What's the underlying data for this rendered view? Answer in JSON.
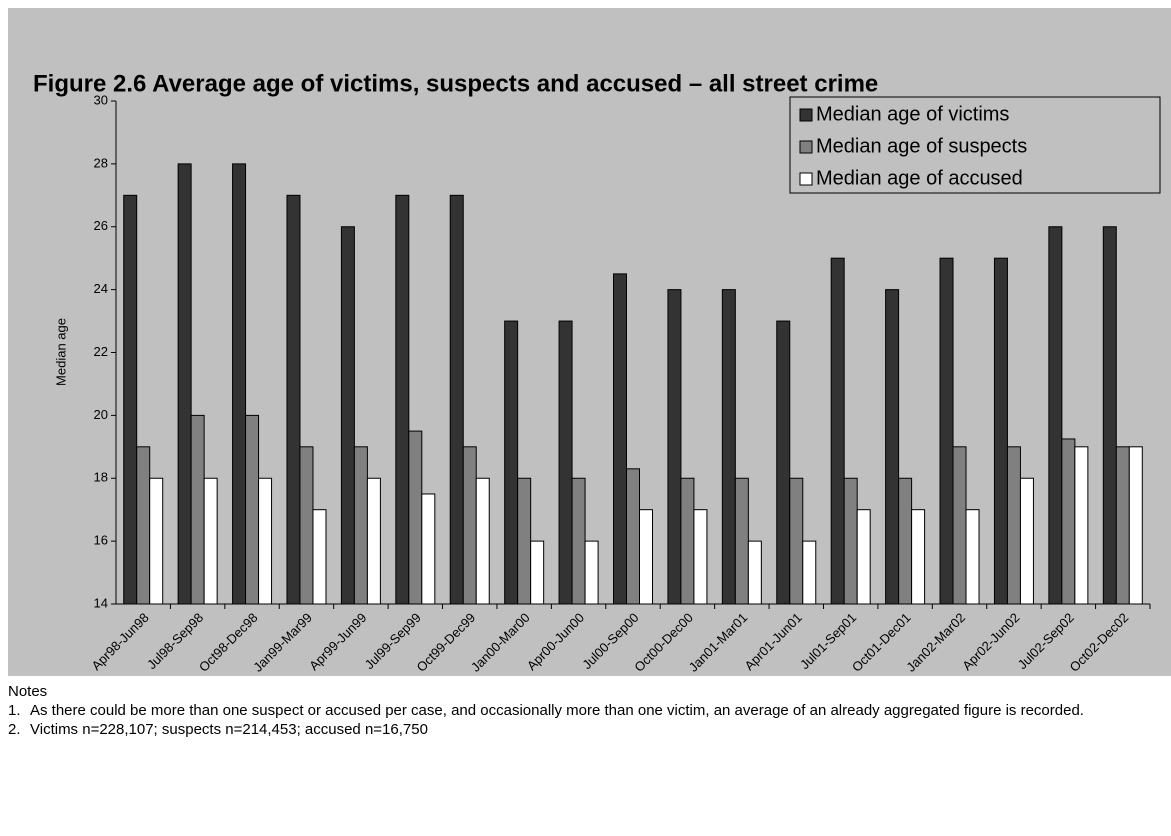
{
  "chart_data": {
    "type": "bar",
    "title": "Figure 2.6 Average age of victims, suspects and accused – all street crime",
    "y_label": "Median age",
    "categories": [
      "Apr98-Jun98",
      "Jul98-Sep98",
      "Oct98-Dec98",
      "Jan99-Mar99",
      "Apr99-Jun99",
      "Jul99-Sep99",
      "Oct99-Dec99",
      "Jan00-Mar00",
      "Apr00-Jun00",
      "Jul00-Sep00",
      "Oct00-Dec00",
      "Jan01-Mar01",
      "Apr01-Jun01",
      "Jul01-Sep01",
      "Oct01-Dec01",
      "Jan02-Mar02",
      "Apr02-Jun02",
      "Jul02-Sep02",
      "Oct02-Dec02"
    ],
    "series": [
      {
        "name": "Median age of victims",
        "color": "#333333",
        "values": [
          27,
          28,
          28,
          27,
          26,
          27,
          27,
          23,
          23,
          24.5,
          24,
          24,
          23,
          25,
          24,
          25,
          25,
          26,
          26
        ]
      },
      {
        "name": "Median age of suspects",
        "color": "#808080",
        "values": [
          19,
          20,
          20,
          19,
          19,
          19.5,
          19,
          18,
          18,
          18.3,
          18,
          18,
          18,
          18,
          18,
          19,
          19,
          19.25,
          19
        ]
      },
      {
        "name": "Median age of accused",
        "color": "#ffffff",
        "values": [
          18,
          18,
          18,
          17,
          18,
          17.5,
          18,
          16,
          16,
          17,
          17,
          16,
          16,
          17,
          17,
          17,
          18,
          19,
          19
        ]
      }
    ],
    "ylim": [
      14,
      30
    ],
    "yticks": [
      14,
      16,
      18,
      20,
      22,
      24,
      26,
      28,
      30
    ],
    "legend": "top-right"
  },
  "notes": {
    "title": "Notes",
    "items": [
      {
        "number": "1.",
        "text": "As there could be more than one suspect or accused per case, and occasionally more than one victim, an average of an already aggregated figure is recorded."
      },
      {
        "number": "2.",
        "text": "Victims n=228,107; suspects n=214,453; accused n=16,750"
      }
    ]
  }
}
